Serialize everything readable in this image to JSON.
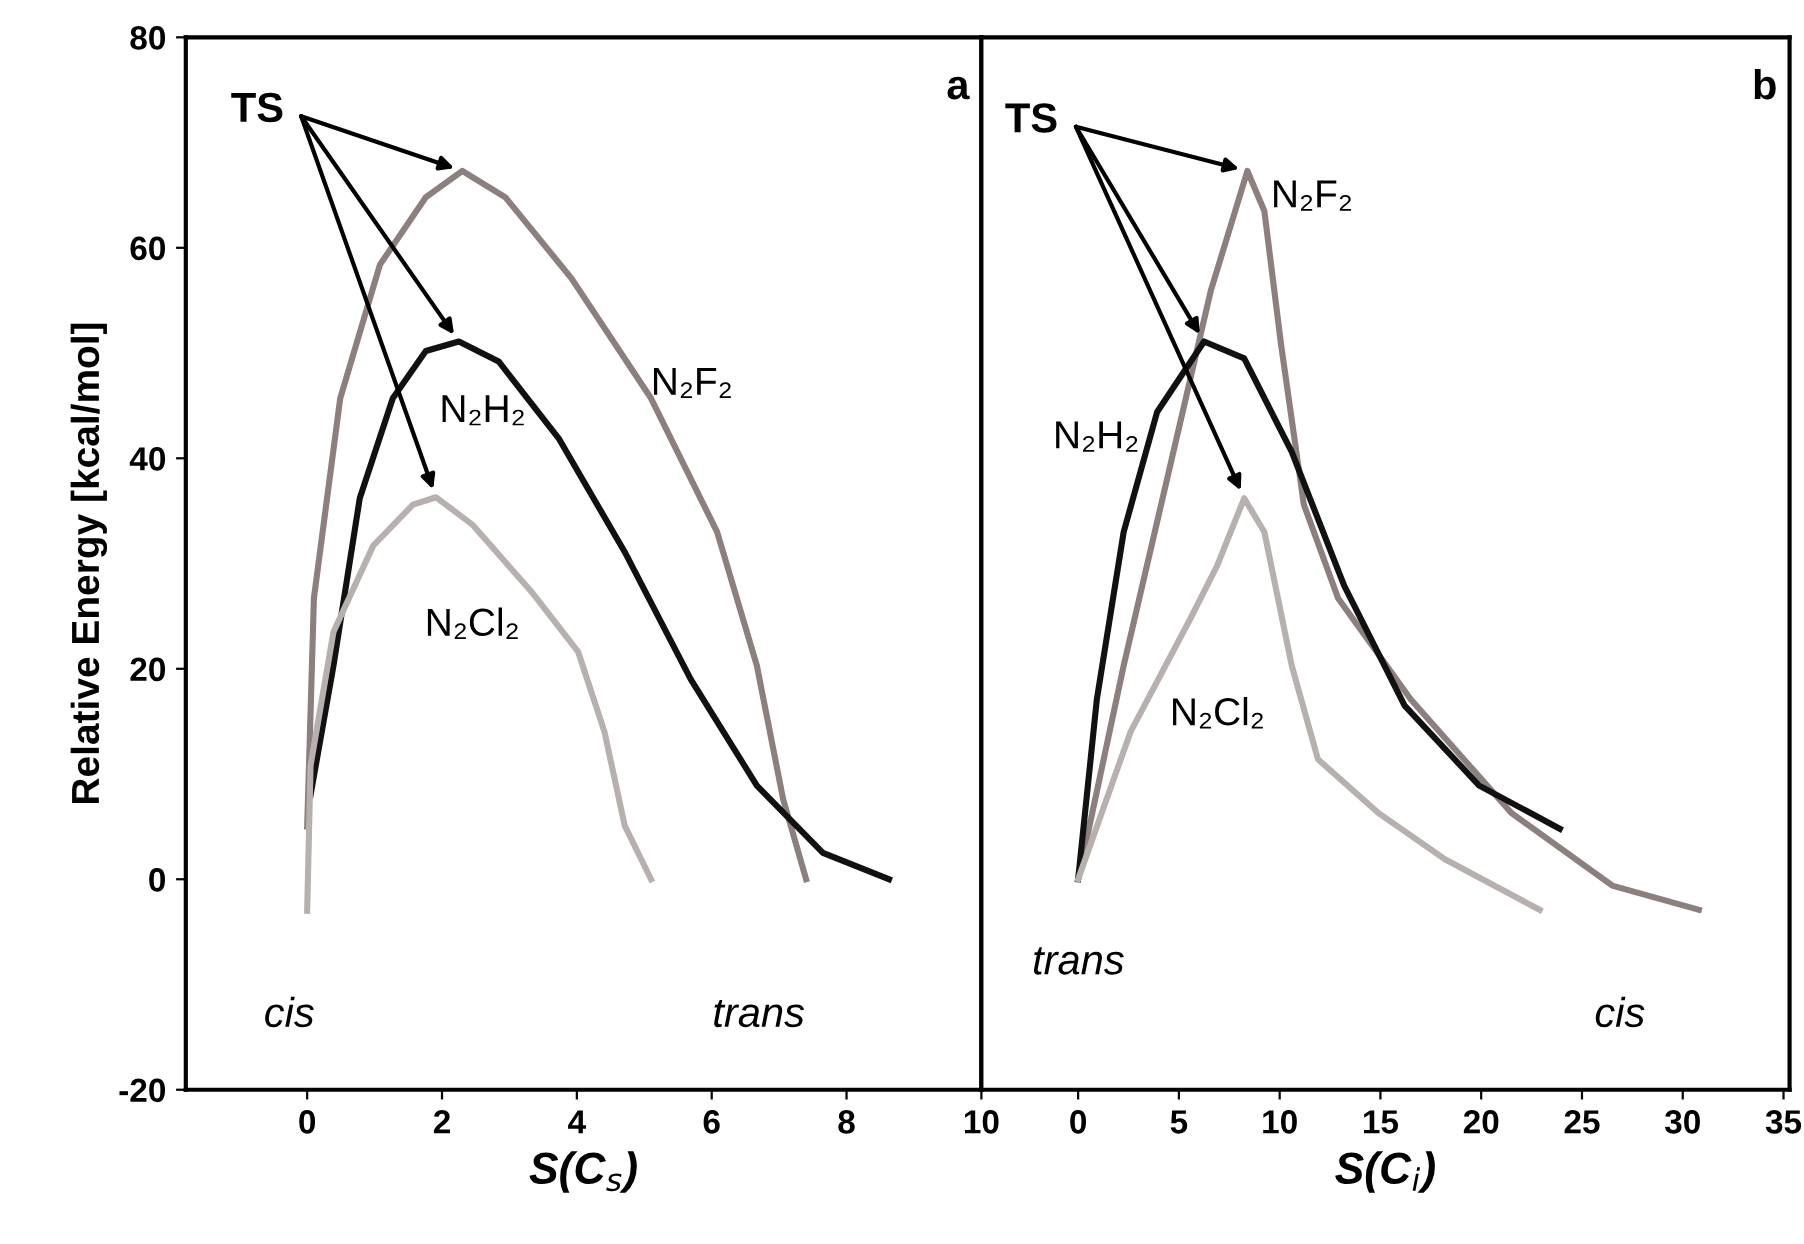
{
  "chart_data": [
    {
      "type": "line",
      "xlabel": "S(C$_{s}$)",
      "ylabel": "Relative Energy [kcal/mol]",
      "xlim": [
        -1.8,
        10
      ],
      "ylim": [
        -20,
        80
      ],
      "xticks": [
        0,
        2,
        4,
        6,
        8,
        10
      ],
      "yticks": [
        -20,
        0,
        20,
        40,
        60,
        80
      ],
      "grid": false,
      "legend": false,
      "line_style": "solid",
      "marker": "none",
      "series": [
        {
          "name": "N₂F₂",
          "color": "#8c7f7d",
          "x": [
            0,
            0.1,
            0.49,
            1.08,
            1.76,
            2.3,
            2.94,
            3.92,
            5.1,
            6.08,
            6.67,
            7.06,
            7.4
          ],
          "values": [
            5,
            26.7,
            45.7,
            58.4,
            64.8,
            67.3,
            64.8,
            57.1,
            45.7,
            33,
            20.3,
            7.6,
            0
          ]
        },
        {
          "name": "N₂H₂",
          "color": "#111111",
          "x": [
            0.05,
            0.39,
            0.78,
            1.27,
            1.76,
            2.25,
            2.84,
            3.73,
            4.71,
            5.69,
            6.67,
            7.65,
            8.63
          ],
          "values": [
            8,
            20.3,
            36.2,
            45.7,
            50.2,
            51.1,
            49.2,
            41.9,
            31.1,
            19,
            8.9,
            2.5,
            0
          ]
        },
        {
          "name": "N₂Cl₂",
          "color": "#b8b0ae",
          "x": [
            0,
            0.05,
            0.39,
            0.98,
            1.57,
            1.91,
            2.45,
            3.33,
            4.02,
            4.41,
            4.71,
            5.1
          ],
          "values": [
            -3,
            10.8,
            23.5,
            31.7,
            35.6,
            36.3,
            33.7,
            27.3,
            21.6,
            14,
            5.1,
            0
          ]
        }
      ],
      "annotations": [
        {
          "text": "TS",
          "x": 2.3,
          "y": 67.3
        },
        "cis",
        "trans",
        "a"
      ]
    },
    {
      "type": "line",
      "xlabel": "S(C$_{i}$)",
      "xlim": [
        -4.8,
        35.3
      ],
      "ylim": [
        -20,
        80
      ],
      "xticks": [
        0,
        5,
        10,
        15,
        20,
        25,
        30,
        35
      ],
      "tick_labels": "x",
      "grid": false,
      "legend": false,
      "line_style": "solid",
      "marker": "none",
      "series": [
        {
          "name": "N₂F₂",
          "color": "#8c7f7d",
          "x": [
            0,
            2.26,
            4.58,
            6.58,
            8.4,
            9.24,
            10.07,
            11.2,
            12.9,
            16.5,
            21.5,
            26.5,
            30.8
          ],
          "values": [
            0,
            20.3,
            39.4,
            55.9,
            67.3,
            63.5,
            50.8,
            35.6,
            26.7,
            17.1,
            6.3,
            -0.6,
            -2.9
          ]
        },
        {
          "name": "N₂H₂",
          "color": "#111111",
          "x": [
            0,
            0.93,
            2.26,
            3.92,
            6.25,
            8.24,
            10.6,
            13.2,
            16.2,
            19.9,
            23.9
          ],
          "values": [
            0,
            17.1,
            33,
            44.4,
            51.1,
            49.5,
            40.6,
            27.9,
            16.5,
            8.9,
            4.8
          ]
        },
        {
          "name": "N₂Cl₂",
          "color": "#b8b0ae",
          "x": [
            0,
            2.6,
            5.58,
            6.9,
            8.24,
            9.24,
            10.6,
            11.9,
            14.9,
            18.2,
            22.9
          ],
          "values": [
            0,
            14,
            24.8,
            29.8,
            36.2,
            33,
            20.3,
            11.4,
            6.3,
            1.9,
            -2.9
          ]
        }
      ],
      "annotations": [
        {
          "text": "TS",
          "x": 8.4,
          "y": 67.3
        },
        "trans",
        "cis",
        "b"
      ]
    }
  ]
}
